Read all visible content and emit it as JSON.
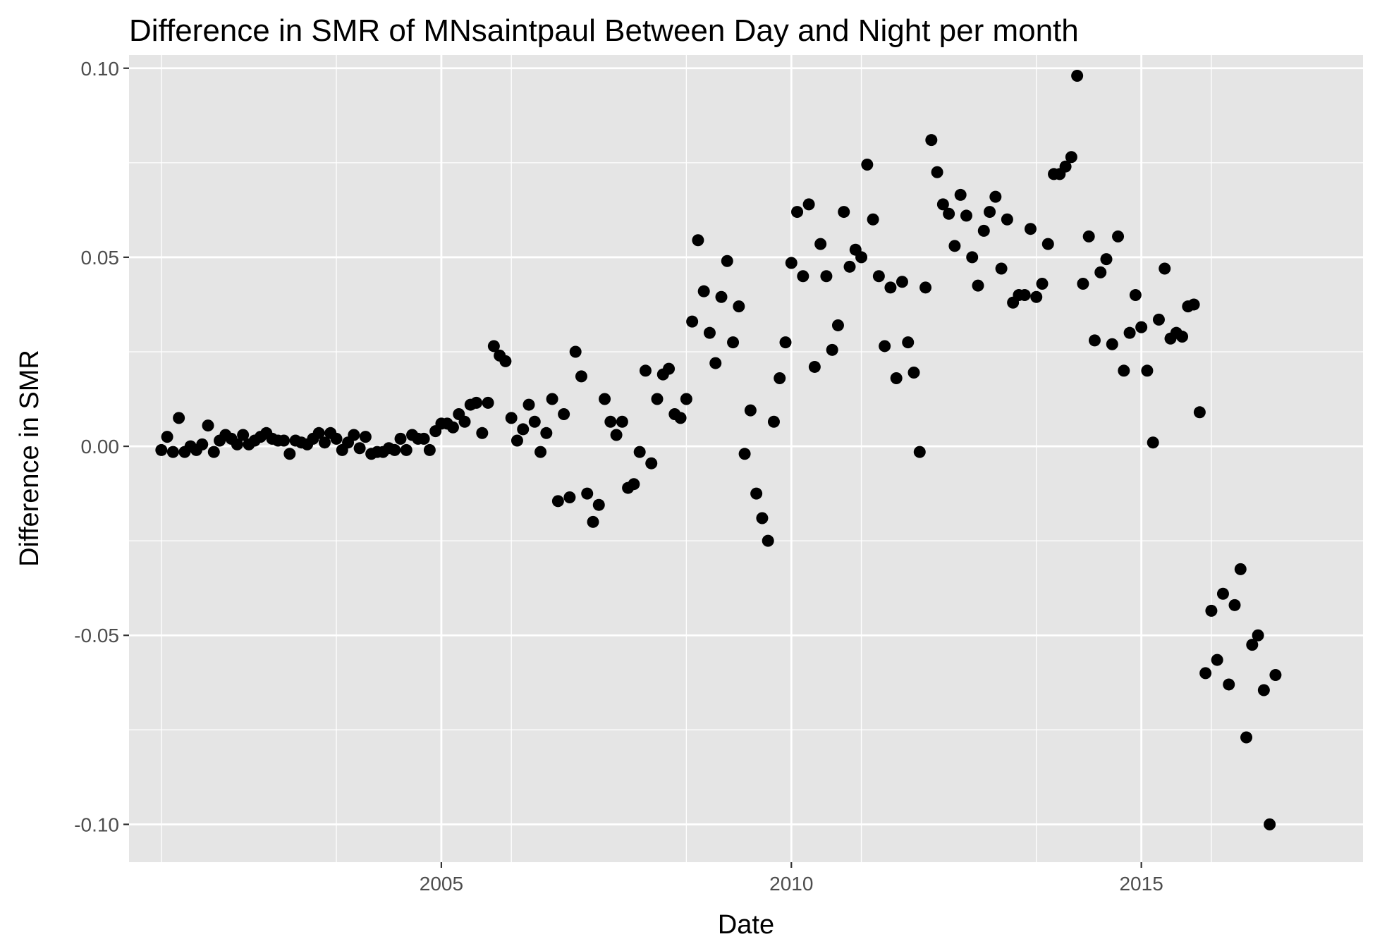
{
  "chart_data": {
    "type": "scatter",
    "title": "Difference in SMR of MNsaintpaul Between Day and Night per month",
    "xlabel": "Date",
    "ylabel": "Difference in SMR",
    "x_ticks": [
      "2005",
      "2010",
      "2015"
    ],
    "y_ticks": [
      "0.10",
      "0.05",
      "0.00",
      "-0.05",
      "-0.10"
    ],
    "xlim": [
      "2000-07-15",
      "2018-03-01"
    ],
    "ylim": [
      -0.11,
      0.1035
    ],
    "grid": true,
    "point_color": "#000000",
    "panel_color": "#e5e5e5",
    "series": [
      {
        "points": [
          [
            "2001-01",
            -0.001
          ],
          [
            "2001-02",
            0.0025
          ],
          [
            "2001-03",
            -0.0015
          ],
          [
            "2001-04",
            0.0075
          ],
          [
            "2001-05",
            -0.0015
          ],
          [
            "2001-06",
            0.0
          ],
          [
            "2001-07",
            -0.001
          ],
          [
            "2001-08",
            0.0005
          ],
          [
            "2001-09",
            0.0055
          ],
          [
            "2001-10",
            -0.0015
          ],
          [
            "2001-11",
            0.0015
          ],
          [
            "2001-12",
            0.003
          ],
          [
            "2002-01",
            0.002
          ],
          [
            "2002-02",
            0.0005
          ],
          [
            "2002-03",
            0.003
          ],
          [
            "2002-04",
            0.0005
          ],
          [
            "2002-05",
            0.0015
          ],
          [
            "2002-06",
            0.0025
          ],
          [
            "2002-07",
            0.0035
          ],
          [
            "2002-08",
            0.002
          ],
          [
            "2002-09",
            0.0015
          ],
          [
            "2002-10",
            0.0015
          ],
          [
            "2002-11",
            -0.002
          ],
          [
            "2002-12",
            0.0015
          ],
          [
            "2003-01",
            0.001
          ],
          [
            "2003-02",
            0.0005
          ],
          [
            "2003-03",
            0.002
          ],
          [
            "2003-04",
            0.0035
          ],
          [
            "2003-05",
            0.001
          ],
          [
            "2003-06",
            0.0035
          ],
          [
            "2003-07",
            0.002
          ],
          [
            "2003-08",
            -0.001
          ],
          [
            "2003-09",
            0.001
          ],
          [
            "2003-10",
            0.003
          ],
          [
            "2003-11",
            -0.0005
          ],
          [
            "2003-12",
            0.0025
          ],
          [
            "2004-01",
            -0.002
          ],
          [
            "2004-02",
            -0.0015
          ],
          [
            "2004-03",
            -0.0015
          ],
          [
            "2004-04",
            -0.0005
          ],
          [
            "2004-05",
            -0.001
          ],
          [
            "2004-06",
            0.002
          ],
          [
            "2004-07",
            -0.001
          ],
          [
            "2004-08",
            0.003
          ],
          [
            "2004-09",
            0.002
          ],
          [
            "2004-10",
            0.002
          ],
          [
            "2004-11",
            -0.001
          ],
          [
            "2004-12",
            0.004
          ],
          [
            "2005-01",
            0.006
          ],
          [
            "2005-02",
            0.006
          ],
          [
            "2005-03",
            0.005
          ],
          [
            "2005-04",
            0.0085
          ],
          [
            "2005-05",
            0.0065
          ],
          [
            "2005-06",
            0.011
          ],
          [
            "2005-07",
            0.0115
          ],
          [
            "2005-08",
            0.0035
          ],
          [
            "2005-09",
            0.0115
          ],
          [
            "2005-10",
            0.0265
          ],
          [
            "2005-11",
            0.024
          ],
          [
            "2005-12",
            0.0225
          ],
          [
            "2006-01",
            0.0075
          ],
          [
            "2006-02",
            0.0015
          ],
          [
            "2006-03",
            0.0045
          ],
          [
            "2006-04",
            0.011
          ],
          [
            "2006-05",
            0.0065
          ],
          [
            "2006-06",
            -0.0015
          ],
          [
            "2006-07",
            0.0035
          ],
          [
            "2006-08",
            0.0125
          ],
          [
            "2006-09",
            -0.0145
          ],
          [
            "2006-10",
            0.0085
          ],
          [
            "2006-11",
            -0.0135
          ],
          [
            "2006-12",
            0.025
          ],
          [
            "2007-01",
            0.0185
          ],
          [
            "2007-02",
            -0.0125
          ],
          [
            "2007-03",
            -0.02
          ],
          [
            "2007-04",
            -0.0155
          ],
          [
            "2007-05",
            0.0125
          ],
          [
            "2007-06",
            0.0065
          ],
          [
            "2007-07",
            0.003
          ],
          [
            "2007-08",
            0.0065
          ],
          [
            "2007-09",
            -0.011
          ],
          [
            "2007-10",
            -0.01
          ],
          [
            "2007-11",
            -0.0015
          ],
          [
            "2007-12",
            0.02
          ],
          [
            "2008-01",
            -0.0045
          ],
          [
            "2008-02",
            0.0125
          ],
          [
            "2008-03",
            0.019
          ],
          [
            "2008-04",
            0.0205
          ],
          [
            "2008-05",
            0.0085
          ],
          [
            "2008-06",
            0.0075
          ],
          [
            "2008-07",
            0.0125
          ],
          [
            "2008-08",
            0.033
          ],
          [
            "2008-09",
            0.0545
          ],
          [
            "2008-10",
            0.041
          ],
          [
            "2008-11",
            0.03
          ],
          [
            "2008-12",
            0.022
          ],
          [
            "2009-01",
            0.0395
          ],
          [
            "2009-02",
            0.049
          ],
          [
            "2009-03",
            0.0275
          ],
          [
            "2009-04",
            0.037
          ],
          [
            "2009-05",
            -0.002
          ],
          [
            "2009-06",
            0.0095
          ],
          [
            "2009-07",
            -0.0125
          ],
          [
            "2009-08",
            -0.019
          ],
          [
            "2009-09",
            -0.025
          ],
          [
            "2009-10",
            0.0065
          ],
          [
            "2009-11",
            0.018
          ],
          [
            "2009-12",
            0.0275
          ],
          [
            "2010-01",
            0.0485
          ],
          [
            "2010-02",
            0.062
          ],
          [
            "2010-03",
            0.045
          ],
          [
            "2010-04",
            0.064
          ],
          [
            "2010-05",
            0.021
          ],
          [
            "2010-06",
            0.0535
          ],
          [
            "2010-07",
            0.045
          ],
          [
            "2010-08",
            0.0255
          ],
          [
            "2010-09",
            0.032
          ],
          [
            "2010-10",
            0.062
          ],
          [
            "2010-11",
            0.0475
          ],
          [
            "2010-12",
            0.052
          ],
          [
            "2011-01",
            0.05
          ],
          [
            "2011-02",
            0.0745
          ],
          [
            "2011-03",
            0.06
          ],
          [
            "2011-04",
            0.045
          ],
          [
            "2011-05",
            0.0265
          ],
          [
            "2011-06",
            0.042
          ],
          [
            "2011-07",
            0.018
          ],
          [
            "2011-08",
            0.0435
          ],
          [
            "2011-09",
            0.0275
          ],
          [
            "2011-10",
            0.0195
          ],
          [
            "2011-11",
            -0.0015
          ],
          [
            "2011-12",
            0.042
          ],
          [
            "2012-01",
            0.081
          ],
          [
            "2012-02",
            0.0725
          ],
          [
            "2012-03",
            0.064
          ],
          [
            "2012-04",
            0.0615
          ],
          [
            "2012-05",
            0.053
          ],
          [
            "2012-06",
            0.0665
          ],
          [
            "2012-07",
            0.061
          ],
          [
            "2012-08",
            0.05
          ],
          [
            "2012-09",
            0.0425
          ],
          [
            "2012-10",
            0.057
          ],
          [
            "2012-11",
            0.062
          ],
          [
            "2012-12",
            0.066
          ],
          [
            "2013-01",
            0.047
          ],
          [
            "2013-02",
            0.06
          ],
          [
            "2013-03",
            0.038
          ],
          [
            "2013-04",
            0.04
          ],
          [
            "2013-05",
            0.04
          ],
          [
            "2013-06",
            0.0575
          ],
          [
            "2013-07",
            0.0395
          ],
          [
            "2013-08",
            0.043
          ],
          [
            "2013-09",
            0.0535
          ],
          [
            "2013-10",
            0.072
          ],
          [
            "2013-11",
            0.072
          ],
          [
            "2013-12",
            0.074
          ],
          [
            "2014-01",
            0.0765
          ],
          [
            "2014-02",
            0.098
          ],
          [
            "2014-03",
            0.043
          ],
          [
            "2014-04",
            0.0555
          ],
          [
            "2014-05",
            0.028
          ],
          [
            "2014-06",
            0.046
          ],
          [
            "2014-07",
            0.0495
          ],
          [
            "2014-08",
            0.027
          ],
          [
            "2014-09",
            0.0555
          ],
          [
            "2014-10",
            0.02
          ],
          [
            "2014-11",
            0.03
          ],
          [
            "2014-12",
            0.04
          ],
          [
            "2015-01",
            0.0315
          ],
          [
            "2015-02",
            0.02
          ],
          [
            "2015-03",
            0.001
          ],
          [
            "2015-04",
            0.0335
          ],
          [
            "2015-05",
            0.047
          ],
          [
            "2015-06",
            0.0285
          ],
          [
            "2015-07",
            0.03
          ],
          [
            "2015-08",
            0.029
          ],
          [
            "2015-09",
            0.037
          ],
          [
            "2015-10",
            0.0375
          ],
          [
            "2015-11",
            0.009
          ],
          [
            "2015-12",
            -0.06
          ],
          [
            "2016-01",
            -0.0435
          ],
          [
            "2016-02",
            -0.0565
          ],
          [
            "2016-03",
            -0.039
          ],
          [
            "2016-04",
            -0.063
          ],
          [
            "2016-05",
            -0.042
          ],
          [
            "2016-06",
            -0.0325
          ],
          [
            "2016-07",
            -0.077
          ],
          [
            "2016-08",
            -0.0525
          ],
          [
            "2016-09",
            -0.05
          ],
          [
            "2016-10",
            -0.0645
          ],
          [
            "2016-11",
            -0.1
          ],
          [
            "2016-12",
            -0.0605
          ]
        ]
      }
    ]
  }
}
